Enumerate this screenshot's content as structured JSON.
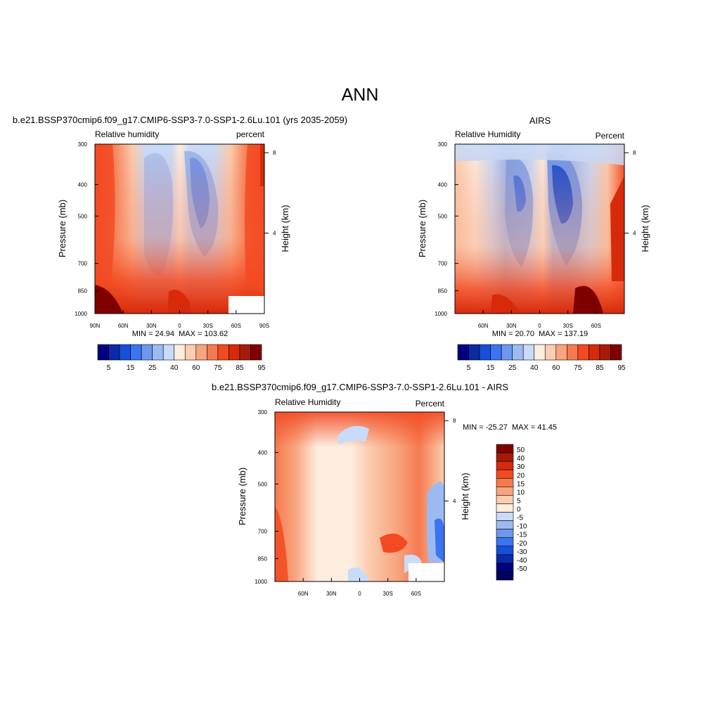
{
  "figure": {
    "title": "ANN",
    "stat_sep": "  MAX = "
  },
  "chart_data": [
    {
      "type": "heatmap",
      "id": "model",
      "title": "b.e21.BSSP370cmip6.f09_g17.CMIP6-SSP3-7.0-SSP1-2.6Lu.101 (yrs 2035-2059)",
      "left_label": "Relative humidity",
      "right_label": "percent",
      "ylabel": "Pressure (mb)",
      "ylabel_right": "Height (km)",
      "x_ticks": [
        "90N",
        "60N",
        "30N",
        "0",
        "30S",
        "60S",
        "90S"
      ],
      "x_tick_values": [
        90,
        60,
        30,
        0,
        -30,
        -60,
        -90
      ],
      "xlim": [
        90,
        -90
      ],
      "y_ticks": [
        "300",
        "400",
        "500",
        "700",
        "850",
        "1000"
      ],
      "y_tick_values": [
        300,
        400,
        500,
        700,
        850,
        1000
      ],
      "ylim": [
        300,
        1000
      ],
      "y_scale": "log",
      "y_right_ticks": [
        "8",
        "4"
      ],
      "y_right_tick_values": [
        8,
        4
      ],
      "min_label": "MIN = ",
      "min": "24.94",
      "max": "103.62",
      "colorbar": {
        "orientation": "horizontal",
        "labels": [
          "5",
          "15",
          "25",
          "40",
          "60",
          "75",
          "85",
          "95"
        ],
        "colors": [
          "#000080",
          "#0a2aa6",
          "#1650d9",
          "#3b74f0",
          "#6e98ee",
          "#9cbaf2",
          "#c8dcfa",
          "#fdeddf",
          "#fbcdb0",
          "#f8a47e",
          "#f67a50",
          "#f24a22",
          "#d72a0a",
          "#a81a08",
          "#800000"
        ]
      }
    },
    {
      "type": "heatmap",
      "id": "obs",
      "title": "AIRS",
      "left_label": "Relative Humidity",
      "right_label": "Percent",
      "ylabel": "Pressure (mb)",
      "ylabel_right": "Height (km)",
      "x_ticks": [
        "60N",
        "30N",
        "0",
        "30S",
        "60S"
      ],
      "x_tick_values": [
        60,
        30,
        0,
        -30,
        -60
      ],
      "xlim": [
        90,
        -90
      ],
      "y_ticks": [
        "300",
        "400",
        "500",
        "700",
        "850",
        "1000"
      ],
      "y_tick_values": [
        300,
        400,
        500,
        700,
        850,
        1000
      ],
      "ylim": [
        300,
        1000
      ],
      "y_scale": "log",
      "y_right_ticks": [
        "8",
        "4"
      ],
      "y_right_tick_values": [
        8,
        4
      ],
      "min_label": "MIN = ",
      "min": "20.70",
      "max": "137.19",
      "colorbar": {
        "orientation": "horizontal",
        "labels": [
          "5",
          "15",
          "25",
          "40",
          "60",
          "75",
          "85",
          "95"
        ],
        "colors": [
          "#000080",
          "#0a2aa6",
          "#1650d9",
          "#3b74f0",
          "#6e98ee",
          "#9cbaf2",
          "#c8dcfa",
          "#fdeddf",
          "#fbcdb0",
          "#f8a47e",
          "#f67a50",
          "#f24a22",
          "#d72a0a",
          "#a81a08",
          "#800000"
        ]
      }
    },
    {
      "type": "heatmap",
      "id": "diff",
      "title": "b.e21.BSSP370cmip6.f09_g17.CMIP6-SSP3-7.0-SSP1-2.6Lu.101 - AIRS",
      "left_label": "Relative Humidity",
      "right_label": "Percent",
      "ylabel": "Pressure (mb)",
      "ylabel_right": "Height (km)",
      "x_ticks": [
        "60N",
        "30N",
        "0",
        "30S",
        "60S"
      ],
      "x_tick_values": [
        60,
        30,
        0,
        -30,
        -60
      ],
      "xlim": [
        90,
        -90
      ],
      "y_ticks": [
        "300",
        "400",
        "500",
        "700",
        "850",
        "1000"
      ],
      "y_tick_values": [
        300,
        400,
        500,
        700,
        850,
        1000
      ],
      "ylim": [
        300,
        1000
      ],
      "y_scale": "log",
      "y_right_ticks": [
        "8",
        "4"
      ],
      "y_right_tick_values": [
        8,
        4
      ],
      "min_label": "MIN = ",
      "min": "-25.27",
      "max": "41.45",
      "colorbar": {
        "orientation": "vertical",
        "labels": [
          "50",
          "40",
          "30",
          "20",
          "15",
          "10",
          "5",
          "0",
          "-5",
          "-10",
          "-15",
          "-20",
          "-30",
          "-40",
          "-50"
        ],
        "colors": [
          "#800000",
          "#a81a08",
          "#d72a0a",
          "#f24a22",
          "#f67a50",
          "#f8a47e",
          "#fbcdb0",
          "#fdeddf",
          "#c8dcfa",
          "#9cbaf2",
          "#6e98ee",
          "#3b74f0",
          "#1650d9",
          "#0a2aa6",
          "#000080",
          "#000060"
        ]
      }
    }
  ]
}
